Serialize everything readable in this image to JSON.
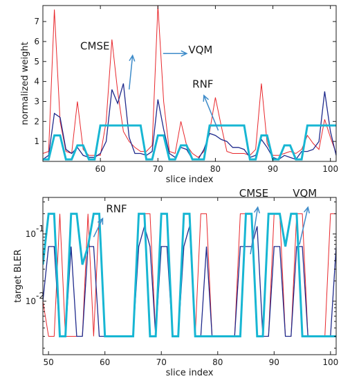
{
  "colors": {
    "cmse": "#e8262b",
    "vqm": "#1f2a8c",
    "rnf": "#17b6d3",
    "annotation": "#3d8bc9",
    "axis": "#1a1a1a"
  },
  "chart_data": [
    {
      "type": "line",
      "xlabel": "slice index",
      "ylabel": "normalized weight",
      "xlim": [
        50,
        101
      ],
      "ylim": [
        0,
        7.8
      ],
      "yscale": "linear",
      "xticks": [
        {
          "v": 60,
          "label": "60"
        },
        {
          "v": 70,
          "label": "70"
        },
        {
          "v": 80,
          "label": "80"
        },
        {
          "v": 90,
          "label": "90"
        },
        {
          "v": 100,
          "label": "100"
        }
      ],
      "yticks": [
        {
          "v": 1,
          "label": "1"
        },
        {
          "v": 2,
          "label": "2"
        },
        {
          "v": 3,
          "label": "3"
        },
        {
          "v": 4,
          "label": "4"
        },
        {
          "v": 5,
          "label": "5"
        },
        {
          "v": 6,
          "label": "6"
        },
        {
          "v": 7,
          "label": "7"
        }
      ],
      "grid": false,
      "series": [
        {
          "name": "CMSE",
          "color_key": "cmse",
          "width": 1,
          "x": [
            50,
            51,
            52,
            53,
            54,
            55,
            56,
            57,
            58,
            59,
            60,
            61,
            62,
            63,
            64,
            65,
            66,
            67,
            68,
            69,
            70,
            71,
            72,
            73,
            74,
            75,
            76,
            77,
            78,
            79,
            80,
            81,
            82,
            83,
            84,
            85,
            86,
            87,
            88,
            89,
            90,
            91,
            92,
            93,
            94,
            95,
            96,
            97,
            98,
            99,
            100,
            101
          ],
          "y": [
            0.4,
            0.5,
            7.6,
            2.0,
            0.5,
            0.4,
            3.0,
            0.6,
            0.3,
            0.3,
            0.3,
            2.0,
            6.1,
            3.5,
            1.5,
            1.0,
            0.7,
            0.5,
            0.5,
            0.8,
            7.8,
            3.0,
            0.5,
            0.4,
            2.0,
            0.8,
            0.4,
            0.2,
            0.5,
            1.5,
            3.2,
            1.8,
            0.5,
            0.4,
            0.4,
            0.4,
            0.3,
            0.6,
            3.9,
            0.9,
            0.3,
            0.3,
            0.4,
            0.5,
            0.4,
            0.6,
            1.3,
            0.9,
            0.6,
            2.1,
            1.2,
            0.4
          ]
        },
        {
          "name": "VQM",
          "color_key": "vqm",
          "width": 1.3,
          "x": [
            50,
            51,
            52,
            53,
            54,
            55,
            56,
            57,
            58,
            59,
            60,
            61,
            62,
            63,
            64,
            65,
            66,
            67,
            68,
            69,
            70,
            71,
            72,
            73,
            74,
            75,
            76,
            77,
            78,
            79,
            80,
            81,
            82,
            83,
            84,
            85,
            86,
            87,
            88,
            89,
            90,
            91,
            92,
            93,
            94,
            95,
            96,
            97,
            98,
            99,
            100,
            101
          ],
          "y": [
            0.1,
            0.3,
            2.4,
            2.2,
            0.6,
            0.4,
            0.7,
            0.3,
            0.2,
            0.2,
            0.4,
            1.0,
            3.6,
            2.9,
            3.9,
            1.2,
            0.4,
            0.4,
            0.3,
            0.5,
            3.1,
            1.6,
            0.4,
            0.2,
            0.7,
            0.6,
            0.1,
            0.1,
            0.6,
            1.4,
            1.3,
            1.1,
            1.0,
            0.7,
            0.7,
            0.6,
            0.2,
            0.3,
            1.1,
            0.7,
            0.2,
            0.1,
            0.3,
            0.2,
            0.1,
            0.5,
            0.5,
            0.6,
            1.0,
            3.5,
            1.5,
            0.3
          ]
        },
        {
          "name": "RNF",
          "color_key": "rnf",
          "width": 3,
          "x": [
            50,
            51,
            52,
            53,
            54,
            55,
            56,
            57,
            58,
            59,
            60,
            61,
            62,
            63,
            64,
            65,
            66,
            67,
            68,
            69,
            70,
            71,
            72,
            73,
            74,
            75,
            76,
            77,
            78,
            79,
            80,
            81,
            82,
            83,
            84,
            85,
            86,
            87,
            88,
            89,
            90,
            91,
            92,
            93,
            94,
            95,
            96,
            97,
            98,
            99,
            100,
            101
          ],
          "y": [
            0.1,
            0.1,
            1.3,
            1.3,
            0.1,
            0.1,
            0.8,
            0.8,
            0.1,
            0.1,
            1.8,
            1.8,
            1.8,
            1.8,
            1.8,
            1.8,
            1.8,
            1.8,
            0.1,
            0.1,
            1.3,
            1.3,
            0.1,
            0.1,
            0.8,
            0.8,
            0.1,
            0.1,
            0.1,
            1.8,
            1.8,
            1.8,
            1.8,
            1.8,
            1.8,
            1.8,
            0.1,
            0.1,
            1.3,
            1.3,
            0.1,
            0.1,
            0.8,
            0.8,
            0.1,
            0.1,
            1.8,
            1.8,
            1.8,
            1.8,
            1.8,
            1.8
          ]
        }
      ],
      "annotations": [
        {
          "text": "CMSE",
          "tx": 56.5,
          "ty": 5.6,
          "ax": 65.0,
          "ay": 3.6,
          "hx": 65.6,
          "hy": 5.3
        },
        {
          "text": "VQM",
          "tx": 75.3,
          "ty": 5.4,
          "ax": 70.9,
          "ay": 5.4,
          "hx": 75.0,
          "hy": 5.4
        },
        {
          "text": "RNF",
          "tx": 76.0,
          "ty": 3.7,
          "ax": 80.5,
          "ay": 1.55,
          "hx": 78.0,
          "hy": 3.3
        }
      ]
    },
    {
      "type": "line",
      "xlabel": "slice index",
      "ylabel": "target BLER",
      "xlim": [
        49,
        101
      ],
      "ylim": [
        0.0016,
        0.35
      ],
      "yscale": "log",
      "xticks": [
        {
          "v": 50,
          "label": "50"
        },
        {
          "v": 60,
          "label": "60"
        },
        {
          "v": 70,
          "label": "70"
        },
        {
          "v": 80,
          "label": "80"
        },
        {
          "v": 90,
          "label": "90"
        },
        {
          "v": 100,
          "label": "100"
        }
      ],
      "yticks": [
        {
          "v": 0.1,
          "label": "10",
          "exp": "-1"
        },
        {
          "v": 0.01,
          "label": "10",
          "exp": "-2"
        }
      ],
      "grid": false,
      "series": [
        {
          "name": "CMSE",
          "color_key": "cmse",
          "width": 1,
          "x": [
            49,
            50,
            51,
            52,
            53,
            54,
            55,
            56,
            57,
            58,
            59,
            60,
            61,
            62,
            63,
            64,
            65,
            66,
            67,
            68,
            69,
            70,
            71,
            72,
            73,
            74,
            75,
            76,
            77,
            78,
            79,
            80,
            81,
            82,
            83,
            84,
            85,
            86,
            87,
            88,
            89,
            90,
            91,
            92,
            93,
            94,
            95,
            96,
            97,
            98,
            99,
            100,
            101
          ],
          "y": [
            0.01,
            0.003,
            0.003,
            0.2,
            0.003,
            0.003,
            0.003,
            0.003,
            0.2,
            0.003,
            0.2,
            0.003,
            0.003,
            0.003,
            0.003,
            0.003,
            0.003,
            0.2,
            0.2,
            0.2,
            0.003,
            0.2,
            0.2,
            0.003,
            0.003,
            0.2,
            0.2,
            0.003,
            0.2,
            0.2,
            0.003,
            0.003,
            0.003,
            0.003,
            0.003,
            0.2,
            0.2,
            0.2,
            0.003,
            0.003,
            0.003,
            0.2,
            0.2,
            0.003,
            0.003,
            0.2,
            0.2,
            0.003,
            0.003,
            0.003,
            0.003,
            0.2,
            0.2
          ]
        },
        {
          "name": "VQM",
          "color_key": "vqm",
          "width": 1.3,
          "x": [
            49,
            50,
            51,
            52,
            53,
            54,
            55,
            56,
            57,
            58,
            59,
            60,
            61,
            62,
            63,
            64,
            65,
            66,
            67,
            68,
            69,
            70,
            71,
            72,
            73,
            74,
            75,
            76,
            77,
            78,
            79,
            80,
            81,
            82,
            83,
            84,
            85,
            86,
            87,
            88,
            89,
            90,
            91,
            92,
            93,
            94,
            95,
            96,
            97,
            98,
            99,
            100,
            101
          ],
          "y": [
            0.01,
            0.065,
            0.065,
            0.003,
            0.003,
            0.065,
            0.003,
            0.003,
            0.065,
            0.065,
            0.003,
            0.003,
            0.003,
            0.003,
            0.003,
            0.003,
            0.003,
            0.065,
            0.13,
            0.065,
            0.003,
            0.065,
            0.065,
            0.003,
            0.003,
            0.065,
            0.13,
            0.003,
            0.003,
            0.065,
            0.003,
            0.003,
            0.003,
            0.003,
            0.003,
            0.065,
            0.065,
            0.065,
            0.13,
            0.003,
            0.003,
            0.065,
            0.065,
            0.003,
            0.003,
            0.065,
            0.065,
            0.003,
            0.003,
            0.003,
            0.003,
            0.003,
            0.065
          ]
        },
        {
          "name": "RNF",
          "color_key": "rnf",
          "width": 3,
          "x": [
            49,
            50,
            51,
            52,
            53,
            54,
            55,
            56,
            57,
            58,
            59,
            60,
            61,
            62,
            63,
            64,
            65,
            66,
            67,
            68,
            69,
            70,
            71,
            72,
            73,
            74,
            75,
            76,
            77,
            78,
            79,
            80,
            81,
            82,
            83,
            84,
            85,
            86,
            87,
            88,
            89,
            90,
            91,
            92,
            93,
            94,
            95,
            96,
            97,
            98,
            99,
            100,
            101
          ],
          "y": [
            0.035,
            0.2,
            0.2,
            0.003,
            0.003,
            0.2,
            0.2,
            0.035,
            0.065,
            0.2,
            0.2,
            0.003,
            0.003,
            0.003,
            0.003,
            0.003,
            0.003,
            0.2,
            0.2,
            0.003,
            0.003,
            0.2,
            0.2,
            0.003,
            0.003,
            0.2,
            0.2,
            0.003,
            0.003,
            0.003,
            0.003,
            0.003,
            0.003,
            0.003,
            0.003,
            0.003,
            0.2,
            0.2,
            0.003,
            0.003,
            0.2,
            0.2,
            0.2,
            0.065,
            0.2,
            0.2,
            0.003,
            0.003,
            0.003,
            0.003,
            0.003,
            0.003,
            0.003
          ]
        }
      ],
      "annotations": [
        {
          "text": "RNF",
          "tx": 60.2,
          "ty": 0.21,
          "ax": 58.0,
          "ay": 0.09,
          "hx": 59.6,
          "hy": 0.17
        },
        {
          "text": "CMSE",
          "tx": 83.8,
          "ty": 0.36,
          "ax": 85.8,
          "ay": 0.05,
          "hx": 87.1,
          "hy": 0.25
        },
        {
          "text": "VQM",
          "tx": 93.3,
          "ty": 0.36,
          "ax": 94.5,
          "ay": 0.07,
          "hx": 96.0,
          "hy": 0.25
        }
      ]
    }
  ]
}
